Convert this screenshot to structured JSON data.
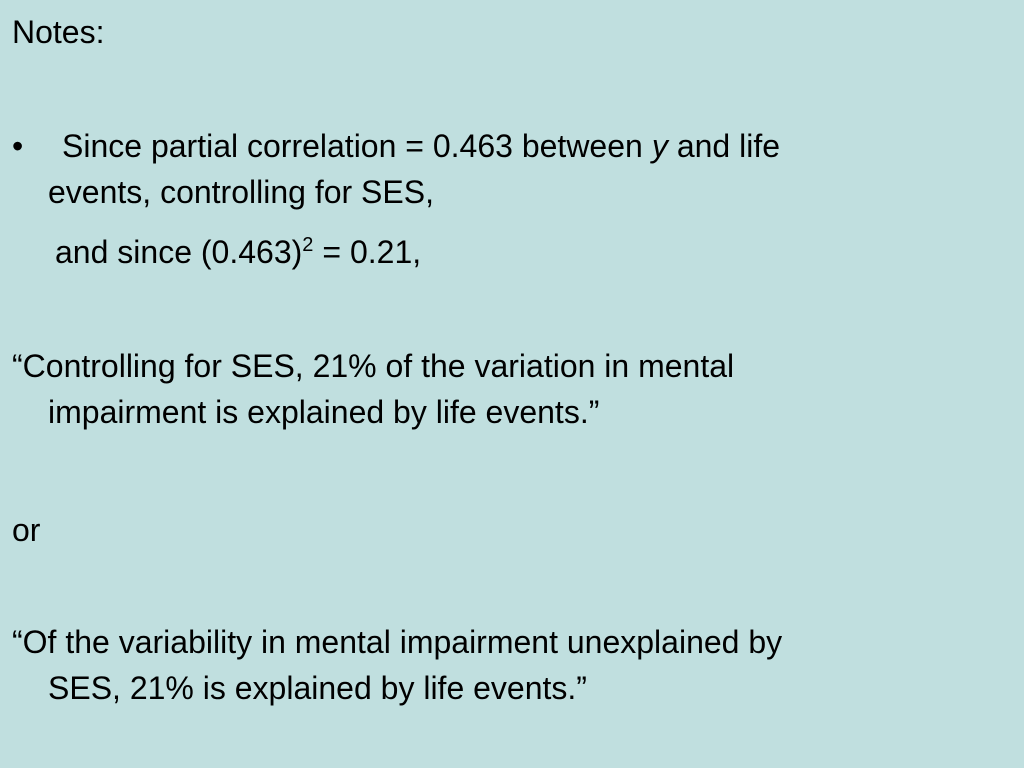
{
  "title": "Notes:",
  "bullet": {
    "marker": "•",
    "line1": {
      "before": "Since partial correlation = 0.463 between",
      "variable": "y",
      "after": "and life"
    },
    "line2": "events, controlling for SES,"
  },
  "continuation": {
    "text": "and since (0.463)",
    "superscript": "2",
    "after": "= 0.21,"
  },
  "quote1": [
    "“Controlling for SES, 21% of the variation in mental",
    "impairment is explained by life events.”"
  ],
  "separator": "or",
  "quote2": [
    "“Of the variability in mental impairment unexplained by",
    "SES, 21% is explained by life events.”"
  ]
}
